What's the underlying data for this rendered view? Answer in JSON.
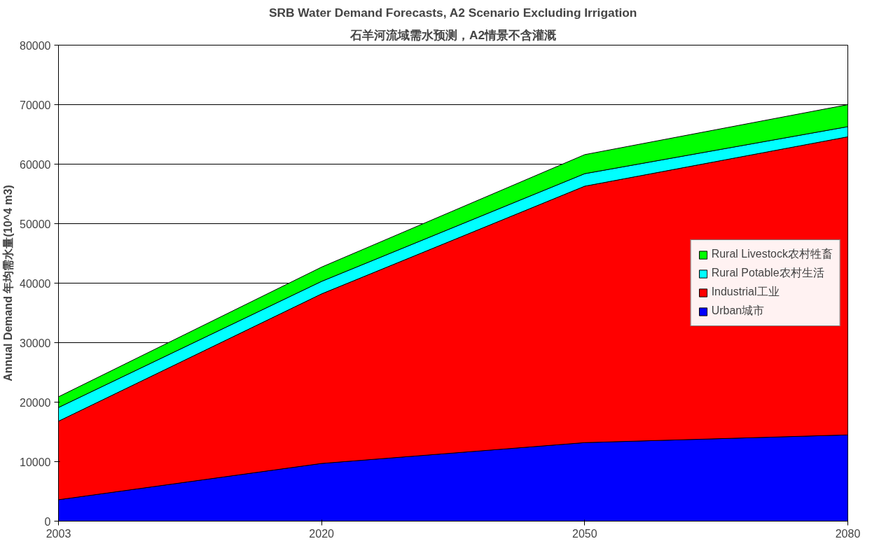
{
  "chart_data": {
    "type": "area",
    "stacked": true,
    "title": "SRB Water Demand Forecasts, A2 Scenario Excluding Irrigation",
    "subtitle": "石羊河流域需水预测，A2情景不含灌溉",
    "ylabel": "Annual Demand 年均需水量(10^4 m3)",
    "categories": [
      "2003",
      "2020",
      "2050",
      "2080"
    ],
    "series": [
      {
        "name": "Urban城市",
        "color": "#0000ff",
        "values": [
          3600,
          9700,
          13200,
          14500
        ]
      },
      {
        "name": "Industrial工业",
        "color": "#ff0000",
        "values": [
          13200,
          28500,
          43100,
          50100
        ]
      },
      {
        "name": "Rural Potable农村生活",
        "color": "#00ffff",
        "values": [
          2300,
          2100,
          2100,
          1700
        ]
      },
      {
        "name": "Rural Livestock农村牲畜",
        "color": "#00ff00",
        "values": [
          1800,
          2400,
          3200,
          3700
        ]
      }
    ],
    "ylim": [
      0,
      80000
    ],
    "yticks": [
      0,
      10000,
      20000,
      30000,
      40000,
      50000,
      60000,
      70000,
      80000
    ],
    "grid": "y",
    "legend": "right"
  }
}
